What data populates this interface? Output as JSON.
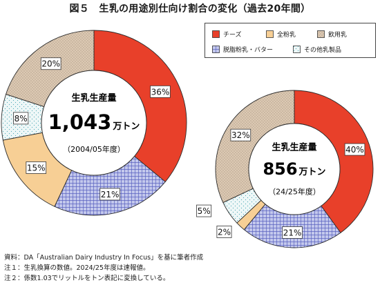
{
  "title": "図５　生乳の用途別仕向け割合の変化（過去20年間）",
  "legend": [
    {
      "name": "チーズ",
      "color": "#e8402a",
      "pattern": "solid"
    },
    {
      "name": "全粉乳",
      "color": "#f7cf95",
      "pattern": "solid"
    },
    {
      "name": "飲用乳",
      "color": "#dcc9b3",
      "pattern": "dots"
    },
    {
      "name": "脱脂粉乳・バター",
      "color": "#b9bfe6",
      "pattern": "grid"
    },
    {
      "name": "その他乳製品",
      "color": "#e6f2f2",
      "pattern": "sparse"
    }
  ],
  "chart_data": [
    {
      "type": "pie",
      "categories": [
        "チーズ",
        "脱脂粉乳・バター",
        "全粉乳",
        "その他乳製品",
        "飲用乳"
      ],
      "values": [
        36,
        21,
        15,
        8,
        20
      ],
      "labels": [
        "36%",
        "21%",
        "15%",
        "8%",
        "20%"
      ],
      "center": {
        "heading": "生乳生産量",
        "value": "1,043",
        "unit": "万トン",
        "period": "（2004/05年度）"
      }
    },
    {
      "type": "pie",
      "categories": [
        "チーズ",
        "脱脂粉乳・バター",
        "全粉乳",
        "その他乳製品",
        "飲用乳"
      ],
      "values": [
        40,
        21,
        2,
        5,
        32
      ],
      "labels": [
        "40%",
        "21%",
        "2%",
        "5%",
        "32%"
      ],
      "center": {
        "heading": "生乳生産量",
        "value": "856",
        "unit": "万トン",
        "period": "（24/25年度）"
      }
    }
  ],
  "notes": [
    "資料：DA「Australian Dairy Industry In Focus」を基に筆者作成",
    "注１：生乳換算の数値。2024/25年度は速報値。",
    "注２：係数1.03でリットルをトン表記に変換している。"
  ]
}
